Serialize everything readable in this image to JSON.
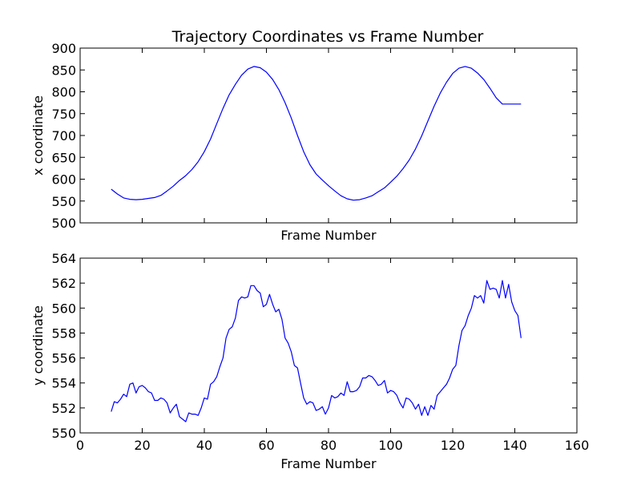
{
  "chart_data": [
    {
      "type": "line",
      "title": "Trajectory Coordinates vs Frame Number",
      "xlabel": "Frame Number",
      "ylabel": "x coordinate",
      "xlim": [
        0,
        160
      ],
      "ylim": [
        500,
        900
      ],
      "yticks": [
        "500",
        "550",
        "600",
        "650",
        "700",
        "750",
        "800",
        "850",
        "900"
      ],
      "xticks": [],
      "grid": false,
      "series": [
        {
          "color": "#0000ff",
          "x": [
            10,
            12,
            14,
            16,
            18,
            20,
            22,
            24,
            26,
            28,
            30,
            32,
            34,
            36,
            38,
            40,
            42,
            44,
            46,
            48,
            50,
            52,
            54,
            56,
            58,
            60,
            62,
            64,
            66,
            68,
            70,
            72,
            74,
            76,
            78,
            80,
            82,
            84,
            86,
            88,
            90,
            92,
            94,
            96,
            98,
            100,
            102,
            104,
            106,
            108,
            110,
            112,
            114,
            116,
            118,
            120,
            122,
            124,
            126,
            128,
            130,
            132,
            134,
            136,
            138,
            140,
            142
          ],
          "y": [
            577,
            566,
            557,
            554,
            553,
            554,
            556,
            558,
            563,
            573,
            584,
            597,
            608,
            622,
            640,
            663,
            692,
            727,
            762,
            793,
            817,
            838,
            852,
            858,
            855,
            845,
            828,
            805,
            775,
            740,
            700,
            663,
            633,
            612,
            598,
            585,
            573,
            562,
            555,
            552,
            553,
            557,
            562,
            571,
            580,
            593,
            607,
            624,
            644,
            669,
            699,
            733,
            767,
            797,
            822,
            842,
            854,
            858,
            854,
            843,
            828,
            808,
            786,
            772,
            772,
            772,
            772
          ]
        }
      ]
    },
    {
      "type": "line",
      "title": "",
      "xlabel": "Frame Number",
      "ylabel": "y coordinate",
      "xlim": [
        0,
        160
      ],
      "ylim": [
        550,
        564
      ],
      "xticks": [
        "0",
        "20",
        "40",
        "60",
        "80",
        "100",
        "120",
        "140",
        "160"
      ],
      "yticks": [
        "550",
        "552",
        "554",
        "556",
        "558",
        "560",
        "562",
        "564"
      ],
      "grid": false,
      "series": [
        {
          "color": "#0000ff",
          "x": [
            10,
            11,
            12,
            13,
            14,
            15,
            16,
            17,
            18,
            19,
            20,
            21,
            22,
            23,
            24,
            25,
            26,
            27,
            28,
            29,
            30,
            31,
            32,
            33,
            34,
            35,
            36,
            37,
            38,
            39,
            40,
            41,
            42,
            43,
            44,
            45,
            46,
            47,
            48,
            49,
            50,
            51,
            52,
            53,
            54,
            55,
            56,
            57,
            58,
            59,
            60,
            61,
            62,
            63,
            64,
            65,
            66,
            67,
            68,
            69,
            70,
            71,
            72,
            73,
            74,
            75,
            76,
            77,
            78,
            79,
            80,
            81,
            82,
            83,
            84,
            85,
            86,
            87,
            88,
            89,
            90,
            91,
            92,
            93,
            94,
            95,
            96,
            97,
            98,
            99,
            100,
            101,
            102,
            103,
            104,
            105,
            106,
            107,
            108,
            109,
            110,
            111,
            112,
            113,
            114,
            115,
            116,
            117,
            118,
            119,
            120,
            121,
            122,
            123,
            124,
            125,
            126,
            127,
            128,
            129,
            130,
            131,
            132,
            133,
            134,
            135,
            136,
            137,
            138,
            139,
            140,
            141,
            142
          ],
          "y": [
            551.7,
            552.5,
            552.4,
            552.7,
            553.1,
            552.9,
            553.9,
            554.0,
            553.2,
            553.7,
            553.8,
            553.6,
            553.3,
            553.2,
            552.6,
            552.6,
            552.8,
            552.7,
            552.4,
            551.6,
            552.0,
            552.3,
            551.3,
            551.1,
            550.9,
            551.6,
            551.5,
            551.5,
            551.4,
            552.0,
            552.8,
            552.7,
            553.9,
            554.1,
            554.5,
            555.3,
            556.0,
            557.6,
            558.3,
            558.5,
            559.2,
            560.6,
            560.9,
            560.8,
            560.9,
            561.8,
            561.8,
            561.4,
            561.2,
            560.1,
            560.3,
            561.1,
            560.3,
            559.7,
            559.9,
            559.1,
            557.6,
            557.2,
            556.5,
            555.4,
            555.2,
            554.0,
            552.8,
            552.3,
            552.5,
            552.4,
            551.8,
            551.9,
            552.1,
            551.5,
            552.0,
            553.0,
            552.8,
            552.9,
            553.2,
            553.0,
            554.1,
            553.3,
            553.3,
            553.4,
            553.7,
            554.4,
            554.4,
            554.6,
            554.5,
            554.2,
            553.8,
            553.9,
            554.2,
            553.2,
            553.4,
            553.3,
            553.0,
            552.4,
            552.0,
            552.8,
            552.7,
            552.4,
            551.9,
            552.3,
            551.4,
            552.1,
            551.4,
            552.2,
            551.9,
            553.0,
            553.3,
            553.6,
            553.9,
            554.4,
            555.1,
            555.4,
            557.0,
            558.2,
            558.6,
            559.4,
            560.0,
            561.0,
            560.8,
            561.0,
            560.4,
            562.2,
            561.5,
            561.6,
            561.5,
            560.8,
            562.2,
            560.8,
            561.9,
            560.5,
            559.8,
            559.4,
            557.6
          ]
        }
      ]
    }
  ]
}
